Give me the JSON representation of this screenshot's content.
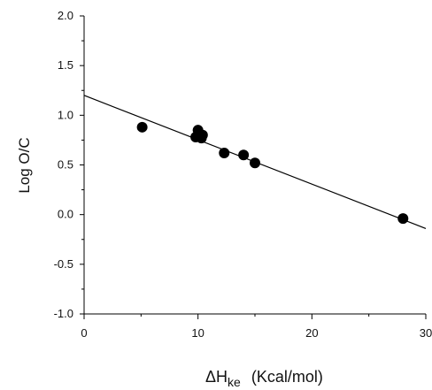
{
  "chart_data": {
    "type": "scatter",
    "xlabel": "ΔH",
    "xlabel_subscript": "ke",
    "xlabel_units": "(Kcal/mol)",
    "ylabel": "Log O/C",
    "xlim": [
      0,
      30
    ],
    "ylim": [
      -1.0,
      2.0
    ],
    "x_ticks": [
      0,
      10,
      20,
      30
    ],
    "x_tick_labels": [
      "0",
      "10",
      "20",
      "30"
    ],
    "y_ticks": [
      -1.0,
      -0.5,
      0.0,
      0.5,
      1.0,
      1.5,
      2.0
    ],
    "y_tick_labels": [
      "-1.0",
      "-0.5",
      "0.0",
      "0.5",
      "1.0",
      "1.5",
      "2.0"
    ],
    "grid": false,
    "points": [
      {
        "x": 5.1,
        "y": 0.88
      },
      {
        "x": 9.8,
        "y": 0.78
      },
      {
        "x": 10.0,
        "y": 0.85
      },
      {
        "x": 10.2,
        "y": 0.79
      },
      {
        "x": 10.3,
        "y": 0.77
      },
      {
        "x": 10.4,
        "y": 0.8
      },
      {
        "x": 12.3,
        "y": 0.62
      },
      {
        "x": 14.0,
        "y": 0.6
      },
      {
        "x": 15.0,
        "y": 0.52
      },
      {
        "x": 28.0,
        "y": -0.04
      }
    ],
    "fit_line": {
      "x": [
        0,
        30
      ],
      "y": [
        1.2,
        -0.14
      ]
    },
    "colors": {
      "points": "#000000",
      "line": "#000000",
      "axes": "#000000"
    }
  }
}
